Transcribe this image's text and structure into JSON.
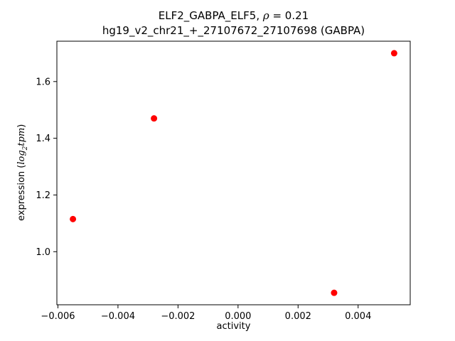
{
  "title": {
    "prefix": "ELF2_GABPA_ELF5, ",
    "rho": "ρ",
    "suffix": " = 0.21"
  },
  "subtitle": "hg19_v2_chr21_+_27107672_27107698 (GABPA)",
  "xlabel": "activity",
  "ylabel_parts": {
    "prefix": "expression (",
    "log": "log",
    "sub": "2",
    "tpm": "tpm",
    "close": ")"
  },
  "chart_data": {
    "type": "scatter",
    "title": "ELF2_GABPA_ELF5, ρ = 0.21",
    "subtitle": "hg19_v2_chr21_+_27107672_27107698 (GABPA)",
    "xlabel": "activity",
    "ylabel": "expression (log2tpm)",
    "marker_color": "#ff0000",
    "axis_color": "#000000",
    "grid": false,
    "legend": false,
    "xlim": [
      -0.006035,
      0.005735
    ],
    "ylim": [
      0.8128,
      1.7423
    ],
    "points": [
      {
        "x": -0.0055,
        "y": 1.115
      },
      {
        "x": -0.0028,
        "y": 1.47
      },
      {
        "x": 0.0032,
        "y": 0.855
      },
      {
        "x": 0.0052,
        "y": 1.7
      }
    ],
    "xticks": [
      {
        "v": -0.006,
        "label": "−0.006"
      },
      {
        "v": -0.004,
        "label": "−0.004"
      },
      {
        "v": -0.002,
        "label": "−0.002"
      },
      {
        "v": 0.0,
        "label": "0.000"
      },
      {
        "v": 0.002,
        "label": "0.002"
      },
      {
        "v": 0.004,
        "label": "0.004"
      }
    ],
    "yticks": [
      {
        "v": 1.0,
        "label": "1.0"
      },
      {
        "v": 1.2,
        "label": "1.2"
      },
      {
        "v": 1.4,
        "label": "1.4"
      },
      {
        "v": 1.6,
        "label": "1.6"
      }
    ]
  }
}
